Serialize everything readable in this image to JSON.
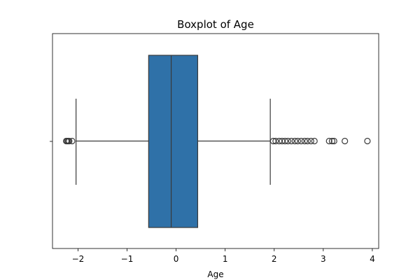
{
  "chart_data": {
    "type": "boxplot",
    "title": "Boxplot of Age",
    "xlabel": "Age",
    "ylabel": "",
    "orientation": "horizontal",
    "xlim": [
      -2.52,
      4.13
    ],
    "x_ticks": [
      -2,
      -1,
      0,
      1,
      2,
      3,
      4
    ],
    "x_tick_labels": [
      "−2",
      "−1",
      "0",
      "1",
      "2",
      "3",
      "4"
    ],
    "grid": false,
    "box_color": "#2f71a8",
    "line_color": "#3a3a3a",
    "box": {
      "whisker_low": -2.04,
      "q1": -0.56,
      "median": -0.1,
      "q3": 0.44,
      "whisker_high": 1.92
    },
    "outliers": [
      -2.24,
      -2.22,
      -2.2,
      -2.18,
      -2.12,
      1.98,
      2.03,
      2.1,
      2.16,
      2.22,
      2.28,
      2.35,
      2.42,
      2.48,
      2.55,
      2.62,
      2.68,
      2.75,
      2.82,
      3.12,
      3.18,
      3.22,
      3.44,
      3.9
    ]
  }
}
